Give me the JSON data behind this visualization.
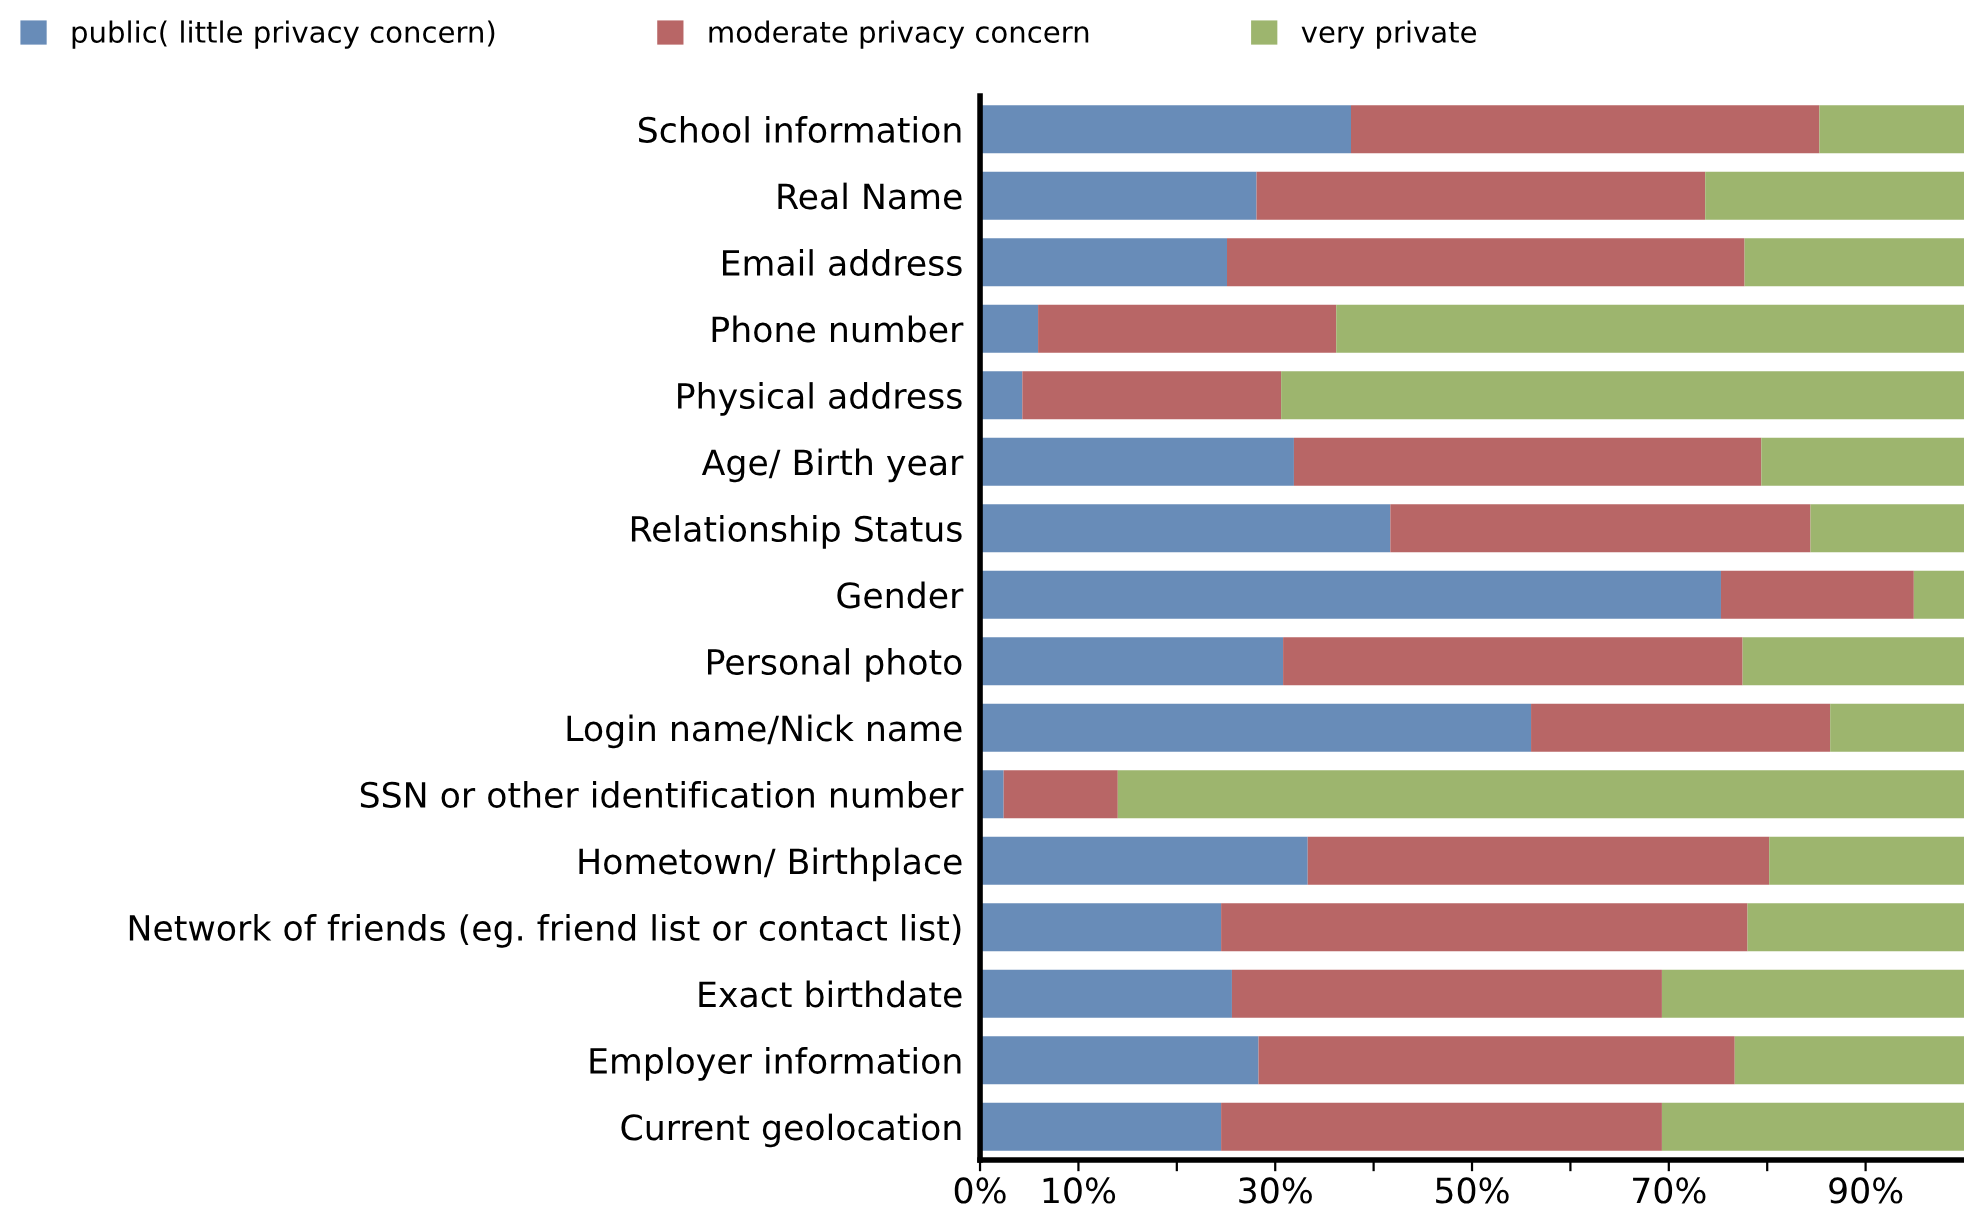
{
  "chart_data": {
    "type": "bar",
    "orientation": "horizontal",
    "stacked": true,
    "categories": [
      "School information",
      "Real Name",
      "Email address",
      "Phone number",
      "Physical address",
      "Age/ Birth year",
      "Relationship Status",
      "Gender",
      "Personal photo",
      "Login name/Nick name",
      "SSN or other identification number",
      "Hometown/ Birthplace",
      "Network of friends (eg. friend list or contact list)",
      "Exact birthdate",
      "Employer information",
      "Current geolocation"
    ],
    "series": [
      {
        "name": "public( little privacy concern)",
        "color": "#688cb8",
        "values": [
          37.7,
          28.1,
          25.1,
          5.9,
          4.3,
          31.9,
          41.7,
          75.3,
          30.8,
          56.0,
          2.4,
          33.3,
          24.5,
          25.6,
          28.3,
          24.5
        ]
      },
      {
        "name": "moderate privacy concern",
        "color": "#b86666",
        "values": [
          47.6,
          45.6,
          52.6,
          30.3,
          26.3,
          47.5,
          42.7,
          19.6,
          46.7,
          30.4,
          11.6,
          46.9,
          53.5,
          43.7,
          48.4,
          44.8
        ]
      },
      {
        "name": "very private",
        "color": "#9db56e",
        "values": [
          14.7,
          26.3,
          22.3,
          63.8,
          69.4,
          20.6,
          15.6,
          5.1,
          22.5,
          13.6,
          86.0,
          19.8,
          22.0,
          30.7,
          23.3,
          30.7
        ]
      }
    ],
    "xlim": [
      0,
      100
    ],
    "xticks": [
      {
        "value": 0,
        "label": "0%"
      },
      {
        "value": 10,
        "label": "10%"
      },
      {
        "value": 20,
        "label": null
      },
      {
        "value": 30,
        "label": "30%"
      },
      {
        "value": 40,
        "label": null
      },
      {
        "value": 50,
        "label": "50%"
      },
      {
        "value": 60,
        "label": null
      },
      {
        "value": 70,
        "label": "70%"
      },
      {
        "value": 80,
        "label": null
      },
      {
        "value": 90,
        "label": "90%"
      }
    ],
    "grid": false,
    "legend": "top left"
  }
}
